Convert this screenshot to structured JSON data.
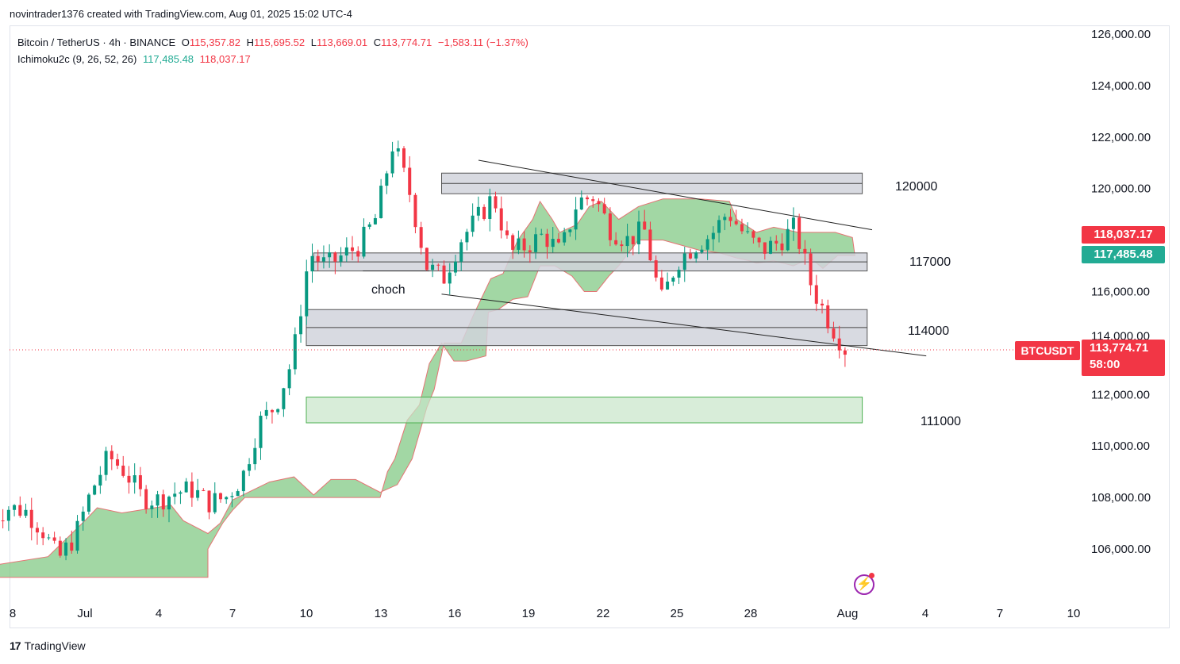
{
  "header": {
    "created_by": "novintrader1376 created with TradingView.com, Aug 01, 2025 15:02 UTC-4"
  },
  "legend": {
    "symbol": "Bitcoin / TetherUS · 4h · BINANCE",
    "open_label": "O",
    "open": "115,357.82",
    "high_label": "H",
    "high": "115,695.52",
    "low_label": "L",
    "low": "113,669.01",
    "close_label": "C",
    "close": "113,774.71",
    "change": "−1,583.11 (−1.37%)",
    "indicator": "Ichimoku2c (9, 26, 52, 26)",
    "indicator_v1": "117,485.48",
    "indicator_v2": "118,037.17"
  },
  "price_axis": {
    "labels": [
      "126,000.00",
      "124,000.00",
      "122,000.00",
      "120,000.00",
      "116,000.00",
      "114,000.00",
      "112,000.00",
      "110,000.00",
      "108,000.00",
      "106,000.00"
    ],
    "tag_red": "118,037.17",
    "tag_green": "117,485.48",
    "symbol_tag": "BTCUSDT",
    "current_price": "113,774.71",
    "countdown": "58:00"
  },
  "time_axis": {
    "labels": [
      "8",
      "Jul",
      "4",
      "7",
      "10",
      "13",
      "16",
      "19",
      "22",
      "25",
      "28",
      "Aug",
      "4",
      "7",
      "10"
    ]
  },
  "annotations": {
    "zone_120000": "120000",
    "zone_117000": "117000",
    "zone_114000": "114000",
    "zone_111000": "111000",
    "choch": "choch"
  },
  "branding": {
    "logo": "17",
    "name": "TradingView"
  },
  "colors": {
    "up": "#22ab94",
    "up_candle": "#089981",
    "down": "#f23645",
    "cloud": "#7bc67e",
    "zone": "#d1d4dc"
  },
  "chart_data": {
    "type": "candlestick",
    "title": "Bitcoin / TetherUS · 4h · BINANCE",
    "ylim": [
      104000,
      127000
    ],
    "y_ticks": [
      106000,
      108000,
      110000,
      112000,
      114000,
      116000,
      118000,
      120000,
      122000,
      124000,
      126000
    ],
    "x_ticks": [
      "8",
      "Jul",
      "4",
      "7",
      "10",
      "13",
      "16",
      "19",
      "22",
      "25",
      "28",
      "Aug",
      "4",
      "7",
      "10"
    ],
    "close_path": [
      [
        "Jun 28",
        107200
      ],
      [
        "Jun 29",
        107600
      ],
      [
        "Jun 30",
        107500
      ],
      [
        "Jul 1",
        106800
      ],
      [
        "Jul 1 b",
        105600
      ],
      [
        "Jul 2",
        106500
      ],
      [
        "Jul 2 b",
        108300
      ],
      [
        "Jul 3",
        109600
      ],
      [
        "Jul 4",
        109000
      ],
      [
        "Jul 4 b",
        108000
      ],
      [
        "Jul 5",
        107900
      ],
      [
        "Jul 6",
        108200
      ],
      [
        "Jul 7",
        108300
      ],
      [
        "Jul 7 b",
        107800
      ],
      [
        "Jul 8",
        108000
      ],
      [
        "Jul 9",
        108800
      ],
      [
        "Jul 9 b",
        110900
      ],
      [
        "Jul 10",
        111600
      ],
      [
        "Jul 10 b",
        113400
      ],
      [
        "Jul 11",
        117500
      ],
      [
        "Jul 11 b",
        117000
      ],
      [
        "Jul 12",
        117400
      ],
      [
        "Jul 13",
        117800
      ],
      [
        "Jul 13 b",
        118900
      ],
      [
        "Jul 14",
        121800
      ],
      [
        "Jul 14 b",
        119800
      ],
      [
        "Jul 15",
        117000
      ],
      [
        "Jul 15 b",
        116500
      ],
      [
        "Jul 16",
        118000
      ],
      [
        "Jul 17",
        118800
      ],
      [
        "Jul 18",
        119700
      ],
      [
        "Jul 18 b",
        117500
      ],
      [
        "Jul 19",
        117800
      ],
      [
        "Jul 20",
        118200
      ],
      [
        "Jul 21",
        117500
      ],
      [
        "Jul 21 b",
        119500
      ],
      [
        "Jul 22",
        119700
      ],
      [
        "Jul 22 b",
        118400
      ],
      [
        "Jul 23",
        118000
      ],
      [
        "Jul 24",
        118400
      ],
      [
        "Jul 25",
        115600
      ],
      [
        "Jul 25 b",
        117200
      ],
      [
        "Jul 26",
        117800
      ],
      [
        "Jul 27",
        118200
      ],
      [
        "Jul 28",
        119100
      ],
      [
        "Jul 28 b",
        118200
      ],
      [
        "Jul 29",
        117600
      ],
      [
        "Jul 30",
        117900
      ],
      [
        "Jul 30 b",
        118500
      ],
      [
        "Jul 31",
        116200
      ],
      [
        "Aug 1",
        114900
      ],
      [
        "Aug 1 b",
        113775
      ]
    ],
    "ichimoku": {
      "senkou_a": [
        117485.48
      ],
      "senkou_b": [
        118037.17
      ]
    },
    "zones": [
      {
        "label": "120000",
        "low": 119800,
        "high": 120600
      },
      {
        "label": "117000",
        "low": 116800,
        "high": 117500
      },
      {
        "label": "114000",
        "low": 113900,
        "high": 115300
      },
      {
        "label": "111000",
        "low": 110900,
        "high": 111900
      }
    ],
    "trendlines": [
      {
        "from": [
          "Jul 17",
          121100
        ],
        "to": [
          "Aug 2",
          118500
        ]
      },
      {
        "from": [
          "Jul 15",
          115900
        ],
        "to": [
          "Aug 4",
          113400
        ]
      }
    ],
    "current": {
      "price": 113774.71,
      "countdown": "58:00"
    }
  }
}
